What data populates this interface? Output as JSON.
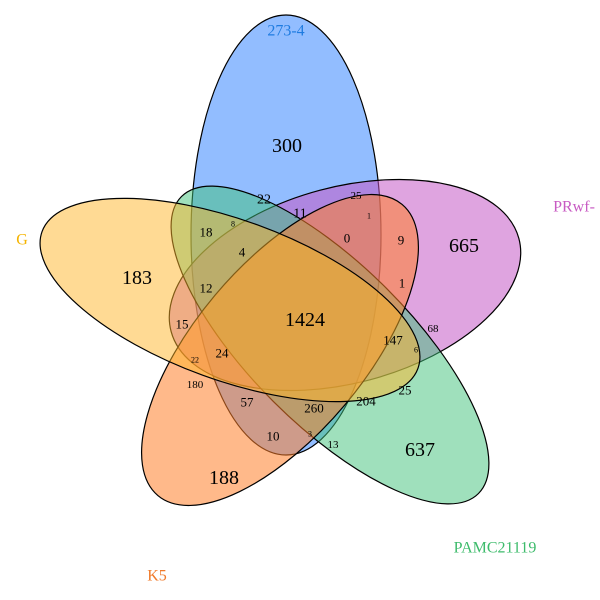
{
  "sets": [
    {
      "id": "blue",
      "label": "273-4",
      "color": "#1E7BE0",
      "fill": "#4F95FF"
    },
    {
      "id": "purple",
      "label": "PRwf-",
      "color": "#C85BC3",
      "fill": "#C55AC7"
    },
    {
      "id": "green",
      "label": "PAMC21119",
      "color": "#3DBB6B",
      "fill": "#3FC27A"
    },
    {
      "id": "orange",
      "label": "K5",
      "color": "#F07A2A",
      "fill": "#FF7F2A"
    },
    {
      "id": "yellow",
      "label": "G",
      "color": "#F5B400",
      "fill": "#FFB62A"
    }
  ],
  "regions": [
    {
      "value": "300"
    },
    {
      "value": "665"
    },
    {
      "value": "637"
    },
    {
      "value": "188"
    },
    {
      "value": "183"
    },
    {
      "value": "1424"
    },
    {
      "value": "22"
    },
    {
      "value": "25"
    },
    {
      "value": "18"
    },
    {
      "value": "8"
    },
    {
      "value": "11"
    },
    {
      "value": "1"
    },
    {
      "value": "0"
    },
    {
      "value": "9"
    },
    {
      "value": "4"
    },
    {
      "value": "12"
    },
    {
      "value": "1"
    },
    {
      "value": "15"
    },
    {
      "value": "68"
    },
    {
      "value": "147"
    },
    {
      "value": "6"
    },
    {
      "value": "22"
    },
    {
      "value": "24"
    },
    {
      "value": "25"
    },
    {
      "value": "180"
    },
    {
      "value": "57"
    },
    {
      "value": "260"
    },
    {
      "value": "204"
    },
    {
      "value": "10"
    },
    {
      "value": "3"
    },
    {
      "value": "13"
    }
  ]
}
